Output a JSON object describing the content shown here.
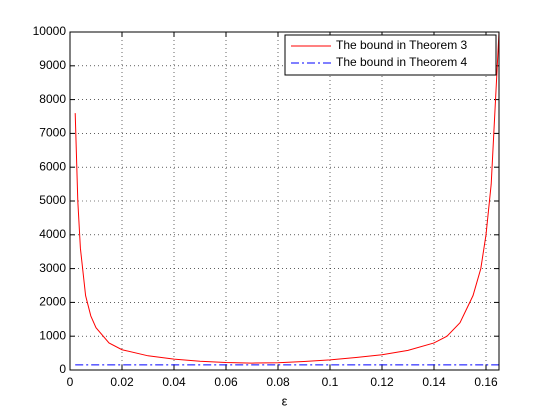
{
  "chart_data": {
    "type": "line",
    "xlabel": "ε",
    "xlim": [
      0,
      0.165
    ],
    "ylim": [
      0,
      10000
    ],
    "xticks": [
      0,
      0.02,
      0.04,
      0.06,
      0.08,
      0.1,
      0.12,
      0.14,
      0.16
    ],
    "yticks": [
      0,
      1000,
      2000,
      3000,
      4000,
      5000,
      6000,
      7000,
      8000,
      9000,
      10000
    ],
    "grid": true,
    "legend": "top-right",
    "series": [
      {
        "name": "The bound in Theorem 3",
        "color": "#ff0000",
        "dash": "solid",
        "x": [
          0.002,
          0.003,
          0.004,
          0.006,
          0.008,
          0.01,
          0.015,
          0.02,
          0.03,
          0.04,
          0.05,
          0.06,
          0.07,
          0.08,
          0.09,
          0.1,
          0.11,
          0.12,
          0.13,
          0.14,
          0.145,
          0.15,
          0.155,
          0.158,
          0.16,
          0.162,
          0.163,
          0.164,
          0.165
        ],
        "values": [
          7600,
          5000,
          3600,
          2200,
          1600,
          1250,
          800,
          600,
          420,
          320,
          260,
          220,
          205,
          215,
          250,
          300,
          370,
          450,
          580,
          800,
          1000,
          1400,
          2200,
          3000,
          4000,
          5500,
          7000,
          8500,
          10000
        ]
      },
      {
        "name": "The bound in Theorem 4",
        "color": "#0000ff",
        "dash": "dashdot",
        "x": [
          0.002,
          0.165
        ],
        "values": [
          150,
          150
        ]
      }
    ]
  }
}
